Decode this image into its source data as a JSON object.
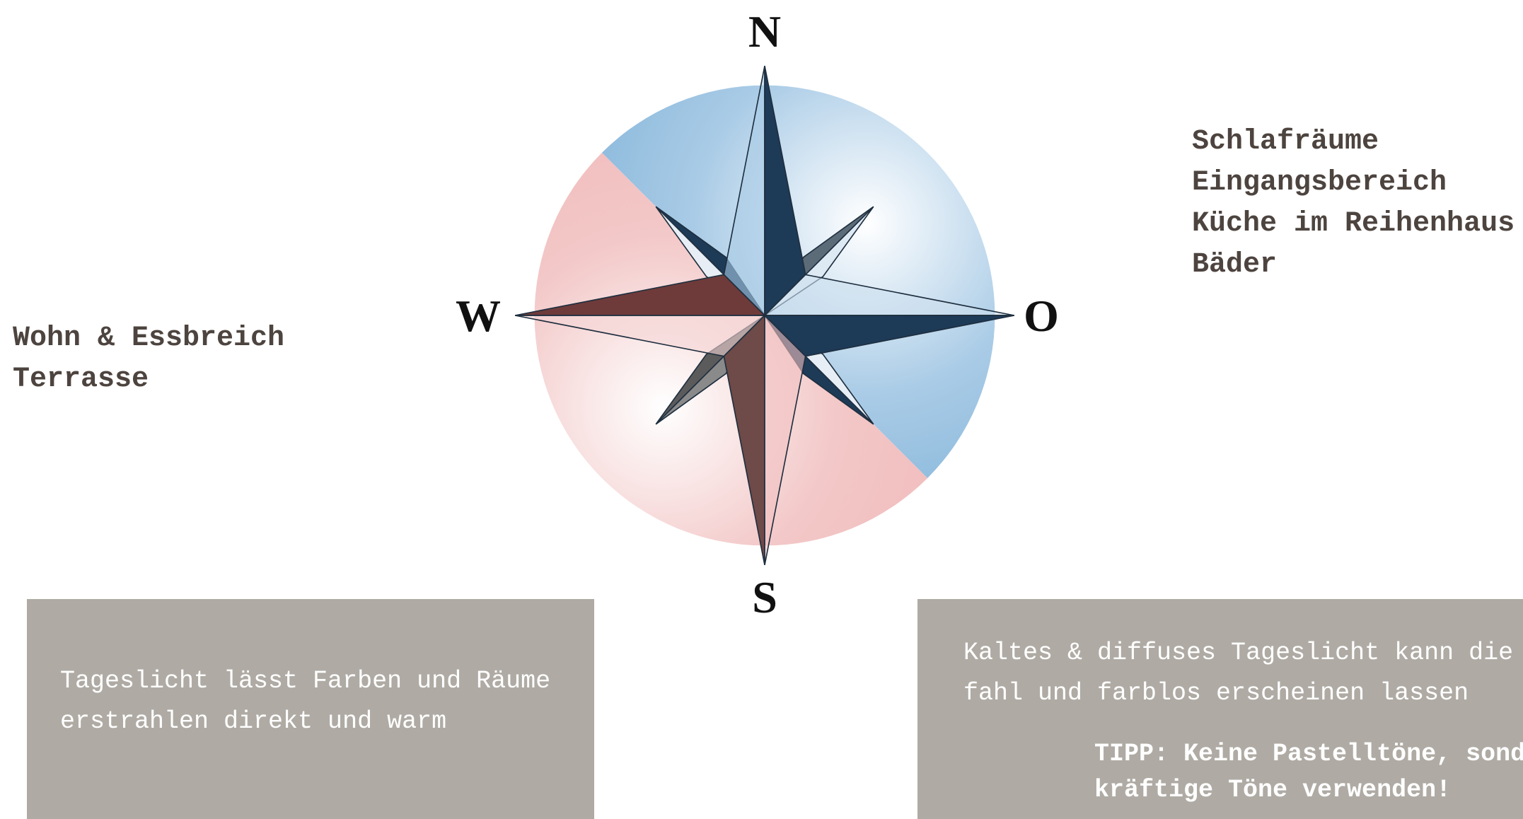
{
  "compass": {
    "north": "N",
    "west": "W",
    "east": "O",
    "south": "S"
  },
  "right_list": [
    "Schlafräume",
    "Eingangsbereich",
    "Küche im Reihenhaus",
    "Bäder"
  ],
  "left_list": [
    "Wohn & Essbreich",
    "Terrasse"
  ],
  "left_box": {
    "lines": [
      "Tageslicht lässt Farben und Räume",
      "erstrahlen direkt und warm"
    ]
  },
  "right_box": {
    "lines": [
      "Kaltes & diffuses Tageslicht kann die",
      "fahl und farblos erscheinen lassen"
    ],
    "tip": [
      "TIPP: Keine Pastelltöne, sond",
      "kräftige Töne verwenden!"
    ]
  }
}
